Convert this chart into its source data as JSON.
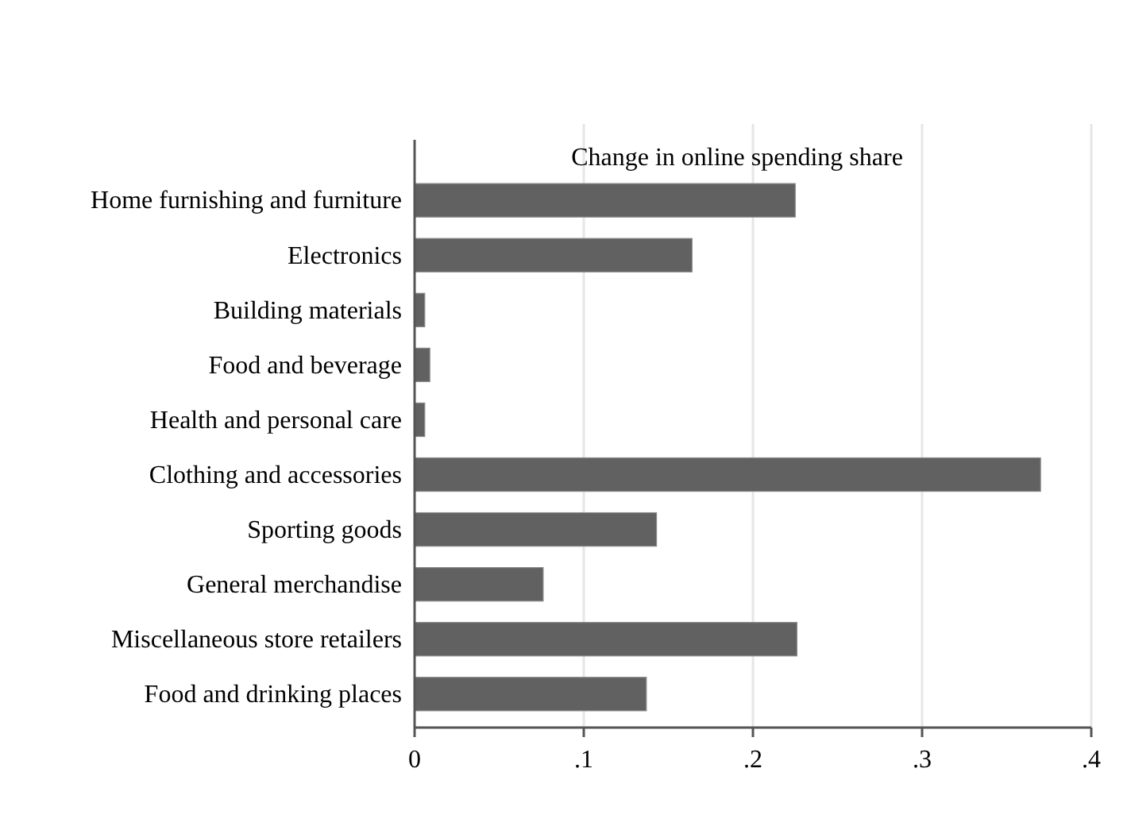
{
  "chart_data": {
    "type": "bar",
    "orientation": "horizontal",
    "title": "Change in online spending share",
    "categories": [
      "Home furnishing and furniture",
      "Electronics",
      "Building materials",
      "Food and beverage",
      "Health and personal care",
      "Clothing and accessories",
      "Sporting goods",
      "General merchandise",
      "Miscellaneous store retailers",
      "Food and drinking places"
    ],
    "values": [
      0.225,
      0.164,
      0.006,
      0.009,
      0.006,
      0.37,
      0.143,
      0.076,
      0.226,
      0.137
    ],
    "color": "#616161",
    "xlim": [
      0,
      0.4
    ],
    "xticks": [
      {
        "value": 0,
        "label": "0"
      },
      {
        "value": 0.1,
        "label": ".1"
      },
      {
        "value": 0.2,
        "label": ".2"
      },
      {
        "value": 0.3,
        "label": ".3"
      },
      {
        "value": 0.4,
        "label": ".4"
      }
    ],
    "grid": "x"
  }
}
